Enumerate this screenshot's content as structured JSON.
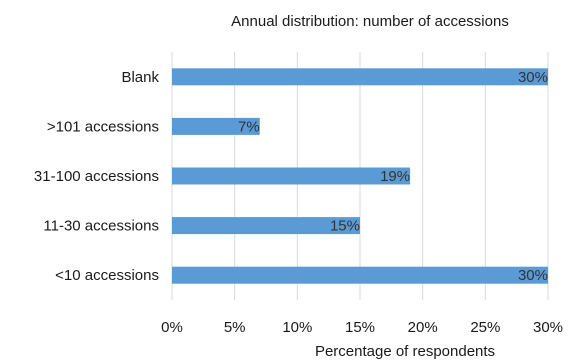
{
  "chart_data": {
    "type": "bar",
    "orientation": "horizontal",
    "title": "Annual distribution: number of accessions",
    "xlabel": "Percentage of respondents",
    "ylabel": "",
    "categories": [
      "Blank",
      ">101 accessions",
      "31-100 accessions",
      "11-30 accessions",
      "<10 accessions"
    ],
    "values": [
      30,
      7,
      19,
      15,
      30
    ],
    "data_labels": [
      "30%",
      "7%",
      "19%",
      "15%",
      "30%"
    ],
    "xlim": [
      0,
      30
    ],
    "x_ticks": [
      "0%",
      "5%",
      "10%",
      "15%",
      "20%",
      "25%",
      "30%"
    ],
    "grid": "vertical",
    "legend": "none",
    "colors": {
      "bar": "#5b9bd5",
      "grid": "#d9d9d9",
      "text": "#1a1a1a"
    }
  }
}
